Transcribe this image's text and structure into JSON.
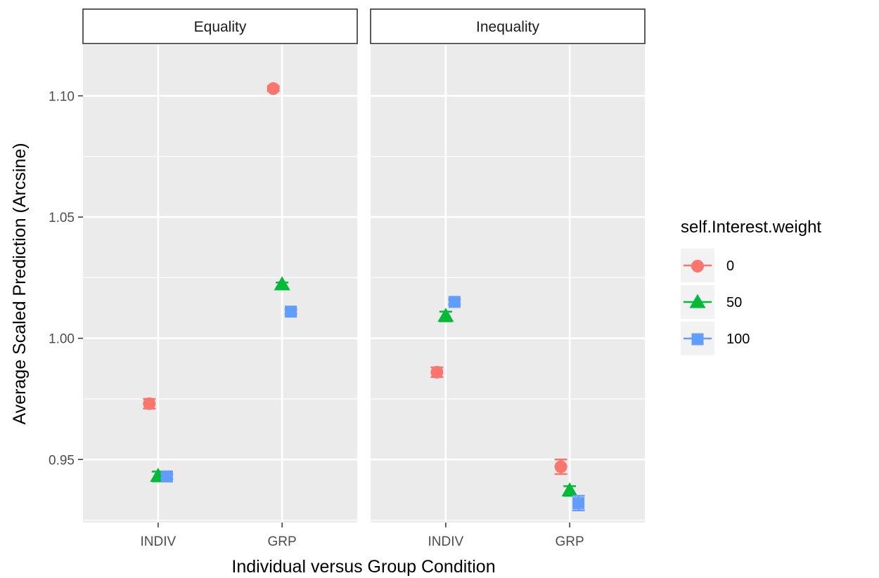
{
  "chart_data": {
    "type": "scatter",
    "facets": [
      "Equality",
      "Inequality"
    ],
    "categories": [
      "INDIV",
      "GRP"
    ],
    "xlabel": "Individual versus Group Condition",
    "ylabel": "Average Scaled Prediction (Arcsine)",
    "ylim": [
      0.924,
      1.121
    ],
    "yticks": [
      0.95,
      1.0,
      1.05,
      1.1
    ],
    "ytick_labels": [
      "0.95",
      "1.00",
      "1.05",
      "1.10"
    ],
    "grid": true,
    "legend": {
      "title": "self.Interest.weight",
      "position": "right",
      "entries": [
        "0",
        "50",
        "100"
      ]
    },
    "series": [
      {
        "name": "0",
        "color": "#F8766D",
        "shape": "circle",
        "values": {
          "Equality": {
            "INDIV": 0.973,
            "GRP": 1.103
          },
          "Inequality": {
            "INDIV": 0.986,
            "GRP": 0.947
          }
        },
        "errors": {
          "Equality": {
            "INDIV": 0.002,
            "GRP": 0.001
          },
          "Inequality": {
            "INDIV": 0.002,
            "GRP": 0.003
          }
        }
      },
      {
        "name": "50",
        "color": "#00BA38",
        "shape": "triangle",
        "values": {
          "Equality": {
            "INDIV": 0.943,
            "GRP": 1.022
          },
          "Inequality": {
            "INDIV": 1.009,
            "GRP": 0.937
          }
        },
        "errors": {
          "Equality": {
            "INDIV": 0.002,
            "GRP": 0.001
          },
          "Inequality": {
            "INDIV": 0.002,
            "GRP": 0.002
          }
        }
      },
      {
        "name": "100",
        "color": "#619CFF",
        "shape": "square",
        "values": {
          "Equality": {
            "INDIV": 0.943,
            "GRP": 1.011
          },
          "Inequality": {
            "INDIV": 1.015,
            "GRP": 0.932
          }
        },
        "errors": {
          "Equality": {
            "INDIV": 0.001,
            "GRP": 0.001
          },
          "Inequality": {
            "INDIV": 0.001,
            "GRP": 0.003
          }
        }
      }
    ]
  }
}
